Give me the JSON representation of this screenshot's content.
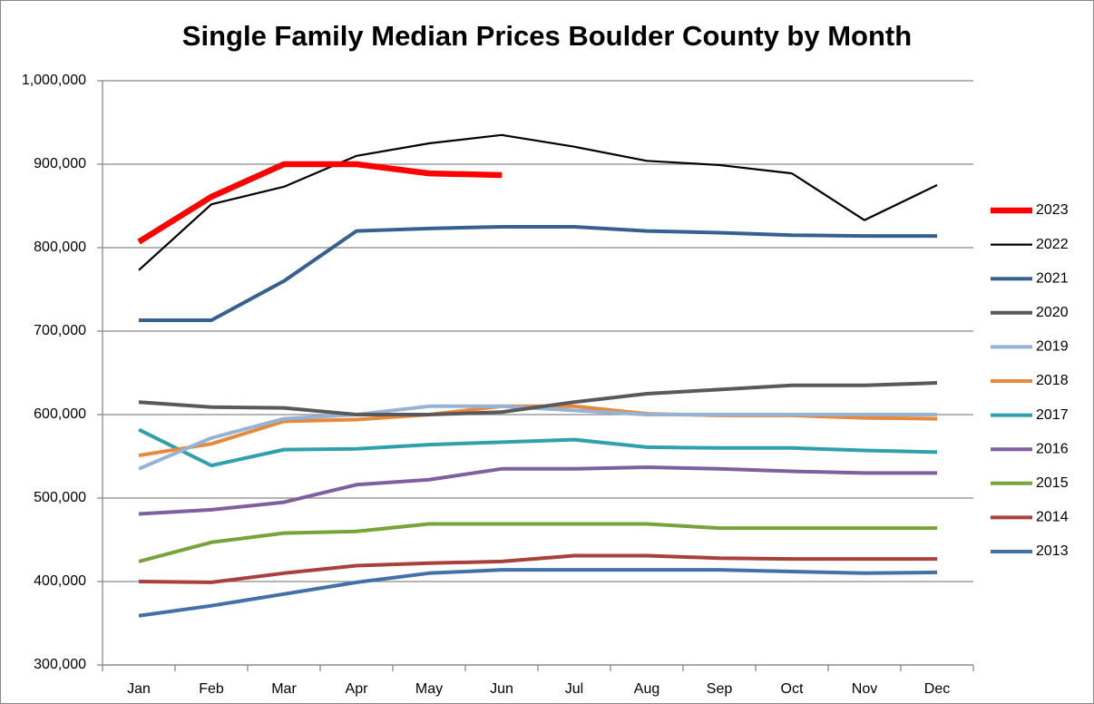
{
  "chart_data": {
    "type": "line",
    "title": "Single Family Median Prices Boulder County by Month",
    "categories": [
      "Jan",
      "Feb",
      "Mar",
      "Apr",
      "May",
      "Jun",
      "Jul",
      "Aug",
      "Sep",
      "Oct",
      "Nov",
      "Dec"
    ],
    "ylim": [
      300000,
      1000000
    ],
    "yticks": [
      {
        "value": 300000,
        "label": "300,000"
      },
      {
        "value": 400000,
        "label": "400,000"
      },
      {
        "value": 500000,
        "label": "500,000"
      },
      {
        "value": 600000,
        "label": "600,000"
      },
      {
        "value": 700000,
        "label": "700,000"
      },
      {
        "value": 800000,
        "label": "800,000"
      },
      {
        "value": 900000,
        "label": "900,000"
      },
      {
        "value": 1000000,
        "label": "1,000,000"
      }
    ],
    "grid": true,
    "legend": "right",
    "series": [
      {
        "name": "2023",
        "color": "#ff0000",
        "values": [
          807000,
          861000,
          900000,
          900000,
          889000,
          887000,
          null,
          null,
          null,
          null,
          null,
          null
        ]
      },
      {
        "name": "2022",
        "color": "#000000",
        "values": [
          773000,
          852000,
          873000,
          910000,
          925000,
          935000,
          921000,
          904000,
          899000,
          889000,
          833000,
          875000
        ]
      },
      {
        "name": "2021",
        "color": "#376092",
        "values": [
          713000,
          713000,
          760000,
          820000,
          823000,
          825000,
          825000,
          820000,
          818000,
          815000,
          814000,
          814000
        ]
      },
      {
        "name": "2020",
        "color": "#595959",
        "values": [
          615000,
          609000,
          608000,
          600000,
          600000,
          603000,
          615000,
          625000,
          630000,
          635000,
          635000,
          638000
        ]
      },
      {
        "name": "2019",
        "color": "#95b3d7",
        "values": [
          535000,
          572000,
          595000,
          600000,
          610000,
          610000,
          605000,
          600000,
          600000,
          600000,
          600000,
          600000
        ]
      },
      {
        "name": "2018",
        "color": "#e8883a",
        "values": [
          551000,
          565000,
          592000,
          594000,
          600000,
          610000,
          610000,
          601000,
          599000,
          599000,
          596000,
          595000
        ]
      },
      {
        "name": "2017",
        "color": "#31a0ad",
        "values": [
          582000,
          539000,
          558000,
          559000,
          564000,
          567000,
          570000,
          561000,
          560000,
          560000,
          557000,
          555000
        ]
      },
      {
        "name": "2016",
        "color": "#7f5fa0",
        "values": [
          481000,
          486000,
          495000,
          516000,
          522000,
          535000,
          535000,
          537000,
          535000,
          532000,
          530000,
          530000
        ]
      },
      {
        "name": "2015",
        "color": "#77a33a",
        "values": [
          424000,
          447000,
          458000,
          460000,
          469000,
          469000,
          469000,
          469000,
          464000,
          464000,
          464000,
          464000
        ]
      },
      {
        "name": "2014",
        "color": "#a9403d",
        "values": [
          400000,
          399000,
          410000,
          419000,
          422000,
          424000,
          431000,
          431000,
          428000,
          427000,
          427000,
          427000
        ]
      },
      {
        "name": "2013",
        "color": "#4470a8",
        "values": [
          359000,
          371000,
          385000,
          399000,
          410000,
          414000,
          414000,
          414000,
          414000,
          412000,
          410000,
          411000
        ]
      }
    ]
  }
}
